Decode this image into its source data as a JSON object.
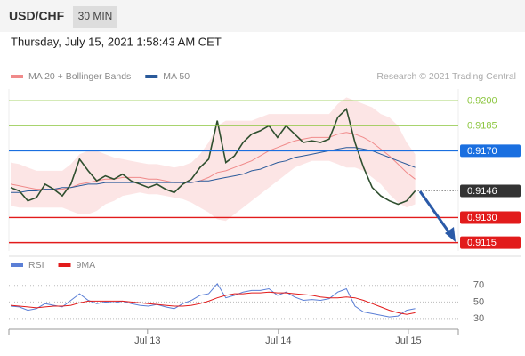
{
  "header": {
    "symbol": "USD/CHF",
    "timeframe": "30 MIN",
    "timestamp": "Thursday, July 15, 2021 1:58:43 AM CET",
    "credit": "Research © 2021 Trading Central"
  },
  "chart_data": [
    {
      "type": "line",
      "xlim": [
        0,
        52
      ],
      "ylim": [
        0.911,
        0.9207
      ],
      "close_color": "#2f4f2f",
      "close": [
        0.9148,
        0.9146,
        0.914,
        0.9142,
        0.915,
        0.9147,
        0.9143,
        0.915,
        0.9165,
        0.9158,
        0.9152,
        0.9155,
        0.9153,
        0.9156,
        0.9152,
        0.915,
        0.9148,
        0.915,
        0.9147,
        0.9145,
        0.915,
        0.9153,
        0.916,
        0.9165,
        0.9188,
        0.9163,
        0.9167,
        0.9175,
        0.918,
        0.9182,
        0.9185,
        0.9178,
        0.9185,
        0.918,
        0.9175,
        0.9176,
        0.9175,
        0.9177,
        0.919,
        0.9195,
        0.9175,
        0.916,
        0.9148,
        0.9143,
        0.914,
        0.9138,
        0.914,
        0.9146
      ],
      "series": [
        {
          "name": "MA 20 + Bollinger Bands",
          "color": "#f08a8a",
          "values": [
            0.915,
            0.9149,
            0.9148,
            0.9147,
            0.9147,
            0.9147,
            0.9147,
            0.9148,
            0.915,
            0.9151,
            0.9152,
            0.9153,
            0.9153,
            0.9154,
            0.9154,
            0.9154,
            0.9153,
            0.9153,
            0.9152,
            0.9151,
            0.9151,
            0.9151,
            0.9152,
            0.9154,
            0.9157,
            0.9158,
            0.916,
            0.9162,
            0.9164,
            0.9167,
            0.917,
            0.9172,
            0.9174,
            0.9176,
            0.9177,
            0.9178,
            0.9178,
            0.9178,
            0.918,
            0.9181,
            0.918,
            0.9178,
            0.9175,
            0.9171,
            0.9167,
            0.9162,
            0.9157,
            0.9153
          ],
          "upper": [
            0.9163,
            0.9162,
            0.916,
            0.9158,
            0.9158,
            0.9158,
            0.9158,
            0.9162,
            0.9168,
            0.917,
            0.917,
            0.9168,
            0.9166,
            0.9165,
            0.9164,
            0.9163,
            0.9162,
            0.9162,
            0.9161,
            0.916,
            0.9161,
            0.9163,
            0.9168,
            0.9175,
            0.9185,
            0.9188,
            0.9188,
            0.9188,
            0.9188,
            0.919,
            0.9192,
            0.9192,
            0.9192,
            0.9192,
            0.9192,
            0.9192,
            0.9192,
            0.9192,
            0.9198,
            0.9202,
            0.92,
            0.9198,
            0.9196,
            0.9192,
            0.919,
            0.9185,
            0.9175,
            0.9168
          ],
          "lower": [
            0.9137,
            0.9136,
            0.9136,
            0.9136,
            0.9136,
            0.9136,
            0.9136,
            0.9134,
            0.9132,
            0.9132,
            0.9134,
            0.9138,
            0.914,
            0.9143,
            0.9144,
            0.9145,
            0.9144,
            0.9144,
            0.9143,
            0.9142,
            0.9141,
            0.9139,
            0.9136,
            0.9133,
            0.9129,
            0.9128,
            0.9132,
            0.9136,
            0.914,
            0.9144,
            0.9148,
            0.9152,
            0.9156,
            0.916,
            0.9162,
            0.9164,
            0.9164,
            0.9164,
            0.9162,
            0.916,
            0.916,
            0.9158,
            0.9154,
            0.915,
            0.9144,
            0.9139,
            0.9136,
            0.9138
          ]
        },
        {
          "name": "MA 50",
          "color": "#2a5a9a",
          "values": [
            0.9145,
            0.9145,
            0.9146,
            0.9146,
            0.9147,
            0.9147,
            0.9148,
            0.9148,
            0.9149,
            0.915,
            0.915,
            0.9151,
            0.9151,
            0.9151,
            0.9151,
            0.9151,
            0.9151,
            0.9151,
            0.9151,
            0.9151,
            0.9151,
            0.9151,
            0.9152,
            0.9152,
            0.9153,
            0.9154,
            0.9155,
            0.9156,
            0.9158,
            0.9159,
            0.9161,
            0.9163,
            0.9164,
            0.9166,
            0.9167,
            0.9168,
            0.9169,
            0.917,
            0.9171,
            0.9172,
            0.9172,
            0.9171,
            0.917,
            0.9168,
            0.9166,
            0.9164,
            0.9162,
            0.916
          ]
        }
      ],
      "levels": [
        {
          "value": 0.92,
          "label": "0.9200",
          "color": "#8cc63f",
          "box": false,
          "dashed": false
        },
        {
          "value": 0.9185,
          "color": "#8cc63f",
          "box": false,
          "dashed": false
        },
        {
          "value": 0.917,
          "label": "0.9170",
          "color": "#1a6fe0",
          "box": true,
          "dashed": false
        },
        {
          "value": 0.9146,
          "color": "#333333",
          "box": true,
          "dashed": true
        },
        {
          "value": 0.913,
          "label": "0.9130",
          "color": "#e21b1b",
          "box": true,
          "dashed": false
        },
        {
          "value": 0.9115,
          "color": "#e21b1b",
          "box": true,
          "dashed": false
        }
      ]
    },
    {
      "type": "line",
      "xlim": [
        0,
        52
      ],
      "ylim": [
        17,
        87
      ],
      "yticks": [
        70,
        50,
        30
      ],
      "grid": true,
      "xticks": [
        {
          "value": 15.9,
          "label": "Jul 13"
        },
        {
          "value": 31.1,
          "label": "Jul 14"
        },
        {
          "value": 46.2,
          "label": "Jul 15"
        }
      ],
      "series": [
        {
          "name": "RSI",
          "color": "#5b7fd6",
          "values": [
            45,
            44,
            40,
            42,
            48,
            46,
            44,
            52,
            60,
            52,
            48,
            50,
            49,
            51,
            48,
            46,
            45,
            47,
            44,
            42,
            48,
            52,
            58,
            60,
            72,
            55,
            58,
            62,
            64,
            64,
            66,
            58,
            62,
            56,
            52,
            53,
            52,
            54,
            62,
            66,
            45,
            38,
            36,
            34,
            32,
            33,
            40,
            42
          ]
        },
        {
          "name": "9MA",
          "color": "#e21b1b",
          "values": [
            46,
            45,
            44,
            43,
            44,
            45,
            45,
            46,
            49,
            51,
            51,
            51,
            51,
            51,
            50,
            49,
            48,
            47,
            46,
            45,
            45,
            46,
            48,
            51,
            55,
            58,
            60,
            60,
            61,
            61,
            62,
            61,
            61,
            60,
            59,
            58,
            56,
            55,
            55,
            56,
            55,
            52,
            48,
            44,
            40,
            37,
            35,
            37
          ]
        }
      ]
    }
  ]
}
